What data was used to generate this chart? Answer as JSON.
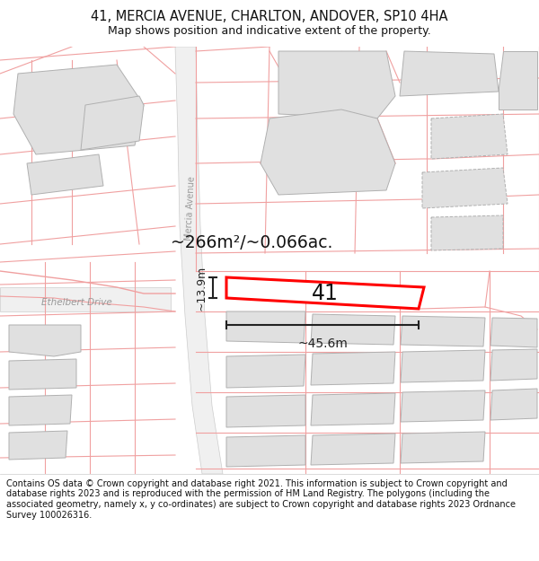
{
  "title": "41, MERCIA AVENUE, CHARLTON, ANDOVER, SP10 4HA",
  "subtitle": "Map shows position and indicative extent of the property.",
  "footer": "Contains OS data © Crown copyright and database right 2021. This information is subject to Crown copyright and database rights 2023 and is reproduced with the permission of HM Land Registry. The polygons (including the associated geometry, namely x, y co-ordinates) are subject to Crown copyright and database rights 2023 Ordnance Survey 100026316.",
  "area_text": "~266m²/~0.066ac.",
  "width_text": "~45.6m",
  "height_text": "~13.9m",
  "plot_number": "41",
  "street_label": "Mercia Avenue",
  "road_label": "Ethelbert Drive",
  "map_bg": "#ffffff",
  "road_fill": "#e8e8e8",
  "road_edge": "#cccccc",
  "bld_fill": "#e0e0e0",
  "bld_edge": "#b0b0b0",
  "prop_line": "#f0a0a0",
  "plot_color": "#ff0000",
  "dim_color": "#222222",
  "label_color": "#999999",
  "figsize": [
    6.0,
    6.25
  ],
  "dpi": 100,
  "title_fontsize": 10.5,
  "subtitle_fontsize": 9,
  "footer_fontsize": 7.0
}
